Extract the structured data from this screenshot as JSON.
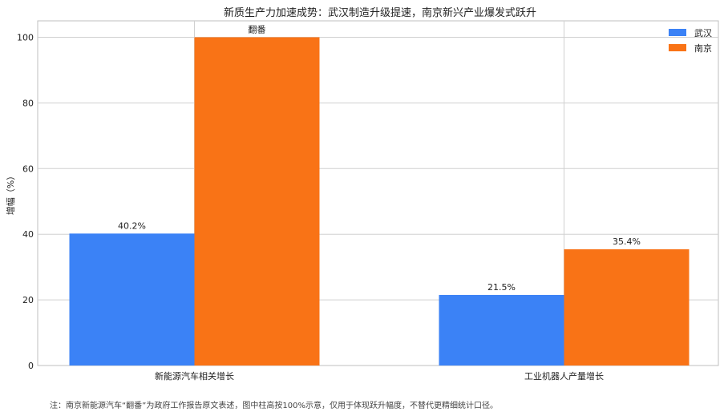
{
  "chart_data": {
    "type": "bar",
    "title": "新质生产力加速成势：武汉制造升级提速，南京新兴产业爆发式跃升",
    "xlabel": "",
    "ylabel": "增幅（%）",
    "ylim": [
      0,
      105
    ],
    "yticks": [
      0,
      20,
      40,
      60,
      80,
      100
    ],
    "categories": [
      "新能源汽车相关增长",
      "工业机器人产量增长"
    ],
    "series": [
      {
        "name": "武汉",
        "color": "#3b82f6",
        "values": [
          40.2,
          21.5
        ],
        "labels": [
          "40.2%",
          "21.5%"
        ]
      },
      {
        "name": "南京",
        "color": "#f97316",
        "values": [
          100,
          35.4
        ],
        "labels": [
          "翻番",
          "35.4%"
        ]
      }
    ],
    "grid": true,
    "legend_position": "top-right",
    "footnote": "注：南京新能源汽车“翻番”为政府工作报告原文表述，图中柱高按100%示意，仅用于体现跃升幅度，不替代更精细统计口径。"
  }
}
